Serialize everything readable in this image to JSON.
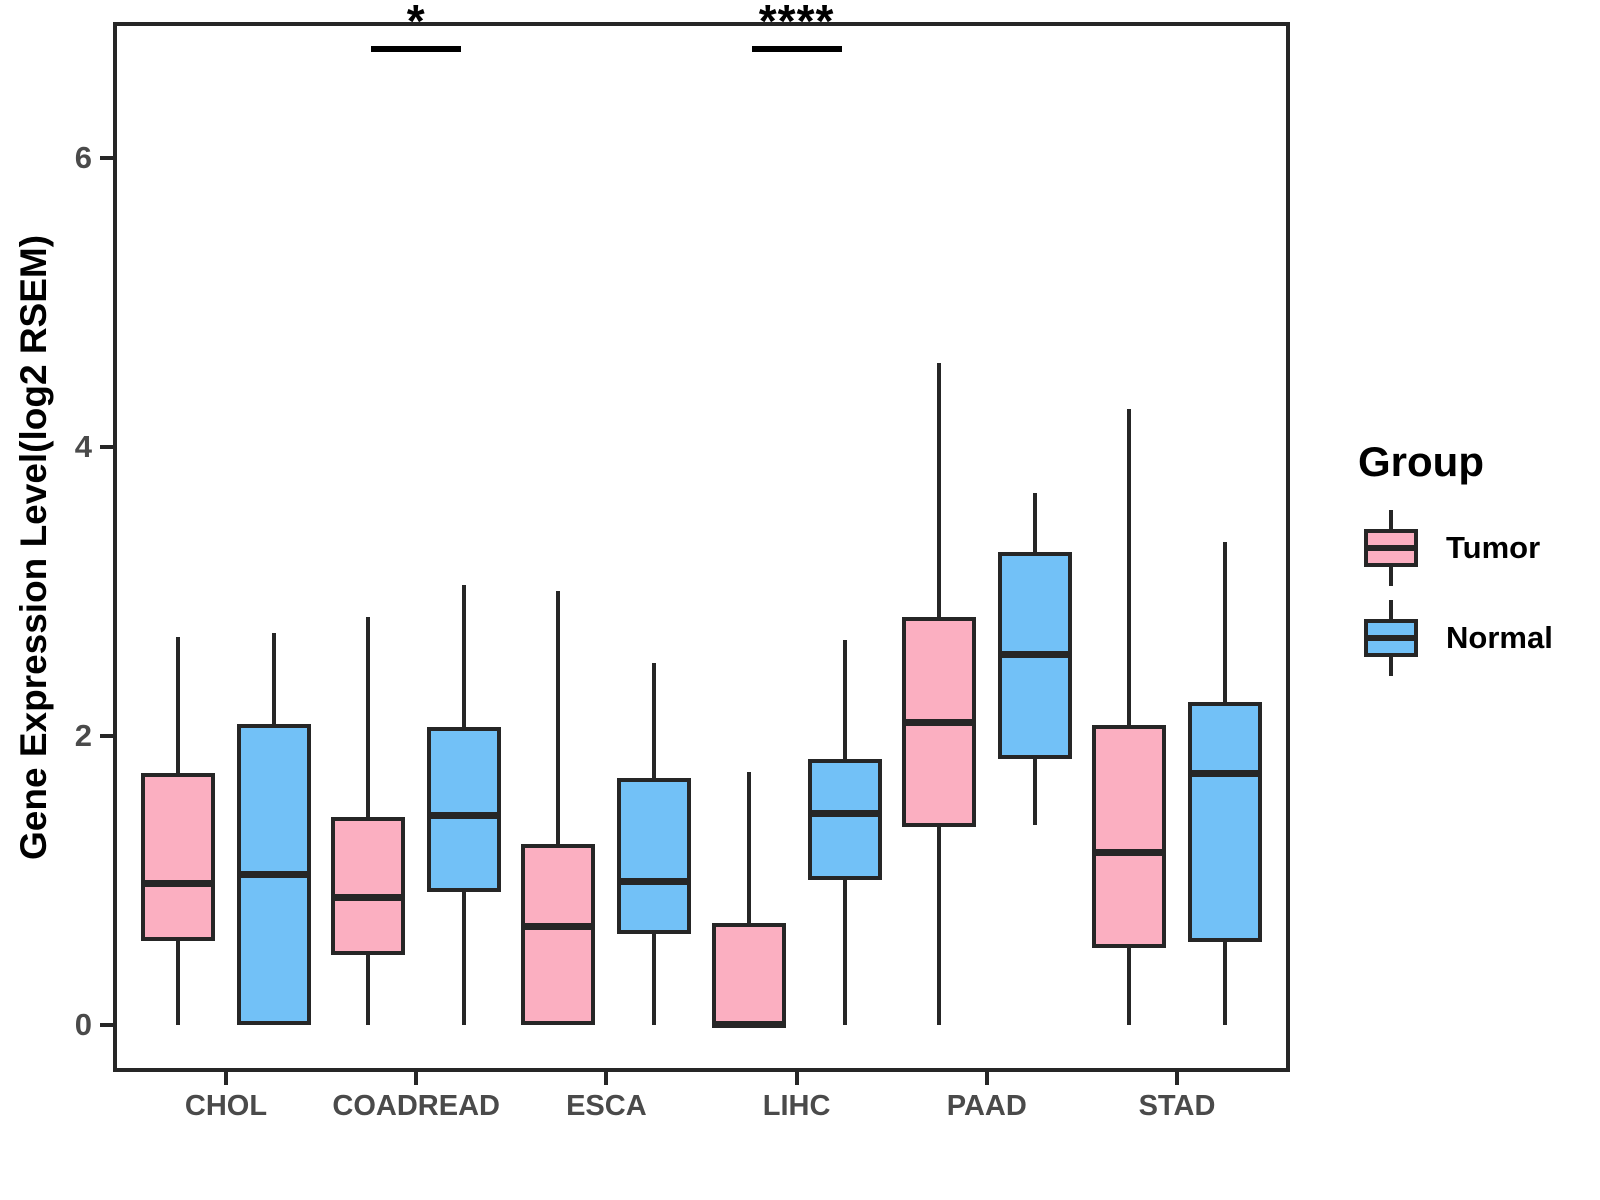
{
  "chart_data": {
    "type": "boxplot",
    "title": "",
    "xlabel": "",
    "ylabel": "Gene Expression Level(log2 RSEM)",
    "yticks": [
      0,
      2,
      4,
      6
    ],
    "ylim": [
      -0.3,
      6.91
    ],
    "grid": "off",
    "categories": [
      "CHOL",
      "COADREAD",
      "ESCA",
      "LIHC",
      "PAAD",
      "STAD"
    ],
    "series": [
      {
        "name": "Tumor",
        "color": "#FBAFC1",
        "boxes": [
          {
            "min": 0,
            "q1": 0.58,
            "median": 0.98,
            "q3": 1.74,
            "max": 2.68
          },
          {
            "min": 0,
            "q1": 0.48,
            "median": 0.88,
            "q3": 1.44,
            "max": 2.82
          },
          {
            "min": 0,
            "q1": 0.0,
            "median": 0.68,
            "q3": 1.25,
            "max": 3.0
          },
          {
            "min": 0,
            "q1": 0.0,
            "median": 0.0,
            "q3": 0.7,
            "max": 1.75
          },
          {
            "min": 0,
            "q1": 1.37,
            "median": 2.09,
            "q3": 2.82,
            "max": 4.58
          },
          {
            "min": 0,
            "q1": 0.53,
            "median": 1.19,
            "q3": 2.07,
            "max": 4.26
          }
        ]
      },
      {
        "name": "Normal",
        "color": "#72C1F7",
        "boxes": [
          {
            "min": 0,
            "q1": 0.0,
            "median": 1.04,
            "q3": 2.08,
            "max": 2.71
          },
          {
            "min": 0,
            "q1": 0.92,
            "median": 1.45,
            "q3": 2.06,
            "max": 3.04
          },
          {
            "min": 0,
            "q1": 0.63,
            "median": 0.99,
            "q3": 1.71,
            "max": 2.5
          },
          {
            "min": 0,
            "q1": 1.0,
            "median": 1.46,
            "q3": 1.84,
            "max": 2.66
          },
          {
            "min": 1.38,
            "q1": 1.84,
            "median": 2.56,
            "q3": 3.27,
            "max": 3.68
          },
          {
            "min": 0,
            "q1": 0.57,
            "median": 1.74,
            "q3": 2.23,
            "max": 3.34
          }
        ]
      }
    ],
    "annotations": [
      {
        "category": "COADREAD",
        "label": "*"
      },
      {
        "category": "LIHC",
        "label": "****"
      }
    ],
    "legend": {
      "title": "Group",
      "position": "right",
      "items": [
        "Tumor",
        "Normal"
      ]
    },
    "style": {
      "box_border_color": "#262626",
      "tick_label_color": "#4a4a4a",
      "axis_title_color": "#000000",
      "tumor_fill": "#FBAFC1",
      "normal_fill": "#72C1F7"
    }
  }
}
